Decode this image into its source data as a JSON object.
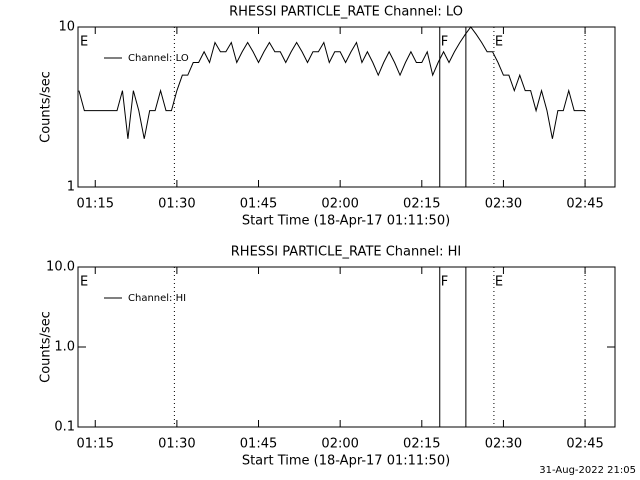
{
  "chart_data": [
    {
      "type": "line",
      "title": "RHESSI PARTICLE_RATE Channel: LO",
      "x_label": "Start Time (18-Apr-17 01:11:50)",
      "y_label": "Counts/sec",
      "log_y": true,
      "color": "#000000",
      "xlim": [
        71.83,
        170.5
      ],
      "ylim": [
        1,
        10
      ],
      "xticks": [
        {
          "value": 75,
          "label": "01:15"
        },
        {
          "value": 90,
          "label": "01:30"
        },
        {
          "value": 105,
          "label": "01:45"
        },
        {
          "value": 120,
          "label": "02:00"
        },
        {
          "value": 135,
          "label": "02:15"
        },
        {
          "value": 150,
          "label": "02:30"
        },
        {
          "value": 165,
          "label": "02:45"
        }
      ],
      "yticks": [
        1,
        10
      ],
      "markers": [
        {
          "x": 71.83,
          "label": "E",
          "style": "dotted"
        },
        {
          "x": 89.54,
          "style": "dotted"
        },
        {
          "x": 138.3,
          "label": "F",
          "style": "solid"
        },
        {
          "x": 143.1,
          "style": "solid"
        },
        {
          "x": 148.25,
          "label": "E",
          "style": "dotted"
        },
        {
          "x": 165.0,
          "style": "dotted"
        }
      ],
      "x": [
        72,
        73,
        74,
        75,
        76,
        77,
        78,
        79,
        80,
        81,
        82,
        83,
        84,
        85,
        86,
        87,
        88,
        89,
        90,
        91,
        92,
        93,
        94,
        95,
        96,
        97,
        98,
        99,
        100,
        101,
        102,
        103,
        104,
        105,
        106,
        107,
        108,
        109,
        110,
        111,
        112,
        113,
        114,
        115,
        116,
        117,
        118,
        119,
        120,
        121,
        122,
        123,
        124,
        125,
        126,
        127,
        128,
        129,
        130,
        131,
        132,
        133,
        134,
        135,
        136,
        137,
        138,
        139,
        140,
        141,
        142,
        143,
        144,
        145,
        146,
        147,
        148,
        149,
        150,
        151,
        152,
        153,
        154,
        155,
        156,
        157,
        158,
        159,
        160,
        161,
        162,
        163,
        164,
        165
      ],
      "series": [
        {
          "name": "Channel: LO",
          "color": "#000000",
          "values": [
            4,
            3,
            3,
            3,
            3,
            3,
            3,
            3,
            4,
            2,
            4,
            3,
            2,
            3,
            3,
            4,
            3,
            3,
            4,
            5,
            5,
            6,
            6,
            7,
            6,
            8,
            7,
            7,
            8,
            6,
            7,
            8,
            7,
            6,
            7,
            8,
            7,
            7,
            6,
            7,
            8,
            7,
            6,
            7,
            7,
            8,
            6,
            7,
            7,
            6,
            7,
            8,
            6,
            7,
            6,
            5,
            6,
            7,
            6,
            5,
            6,
            7,
            6,
            6,
            7,
            5,
            6,
            7,
            6,
            7,
            8,
            9,
            10,
            9,
            8,
            7,
            7,
            6,
            5,
            5,
            4,
            5,
            4,
            4,
            3,
            4,
            3,
            2,
            3,
            3,
            4,
            3,
            3,
            3
          ]
        }
      ]
    },
    {
      "type": "line",
      "title": "RHESSI PARTICLE_RATE Channel: HI",
      "x_label": "Start Time (18-Apr-17 01:11:50)",
      "y_label": "Counts/sec",
      "log_y": true,
      "color": "#000000",
      "xlim": [
        71.83,
        170.5
      ],
      "ylim": [
        0.1,
        10
      ],
      "xticks": [
        {
          "value": 75,
          "label": "01:15"
        },
        {
          "value": 90,
          "label": "01:30"
        },
        {
          "value": 105,
          "label": "01:45"
        },
        {
          "value": 120,
          "label": "02:00"
        },
        {
          "value": 135,
          "label": "02:15"
        },
        {
          "value": 150,
          "label": "02:30"
        },
        {
          "value": 165,
          "label": "02:45"
        }
      ],
      "yticks": [
        0.1,
        {
          "value": 1,
          "label": "1.0"
        },
        {
          "value": 10,
          "label": "10.0"
        }
      ],
      "markers": [
        {
          "x": 71.83,
          "label": "E",
          "style": "dotted"
        },
        {
          "x": 89.54,
          "style": "dotted"
        },
        {
          "x": 138.3,
          "label": "F",
          "style": "solid"
        },
        {
          "x": 143.1,
          "style": "solid"
        },
        {
          "x": 148.25,
          "label": "E",
          "style": "dotted"
        },
        {
          "x": 165.0,
          "style": "dotted"
        }
      ],
      "x": [],
      "series": [
        {
          "name": "Channel: HI",
          "color": "#000000",
          "values": []
        }
      ]
    }
  ],
  "footer": "31-Aug-2022 21:05"
}
